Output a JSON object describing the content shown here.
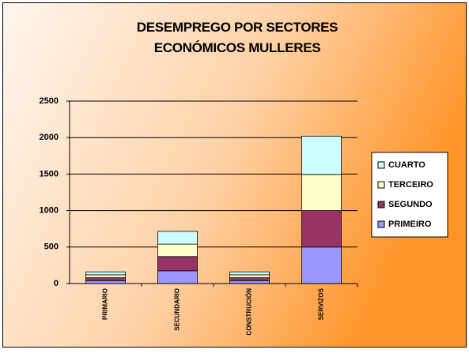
{
  "chart_data": {
    "type": "stacked_bar",
    "title": "DESEMPREGO POR SECTORES ECONÓMICOS MULLERES",
    "categories": [
      "PRIMARIO",
      "SECUNDARIO",
      "CONSTRUCIÓN",
      "SERVIZOS"
    ],
    "series": [
      {
        "name": "PRIMEIRO",
        "color": "#9999ff",
        "values": [
          40,
          175,
          40,
          500
        ]
      },
      {
        "name": "SEGUNDO",
        "color": "#993366",
        "values": [
          40,
          195,
          40,
          500
        ]
      },
      {
        "name": "TERCEIRO",
        "color": "#ffffcc",
        "values": [
          40,
          170,
          40,
          495
        ]
      },
      {
        "name": "CUARTO",
        "color": "#ccffff",
        "values": [
          40,
          175,
          40,
          525
        ]
      }
    ],
    "ylim": [
      0,
      2500
    ],
    "yticks": [
      0,
      500,
      1000,
      1500,
      2000,
      2500
    ],
    "grid": true,
    "legend": "right"
  }
}
